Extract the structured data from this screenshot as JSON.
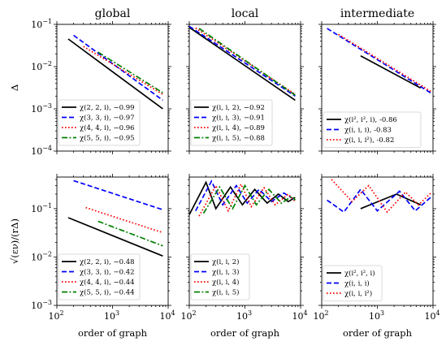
{
  "chart_data": [
    {
      "id": "global-delta",
      "title": "global",
      "xlabel": "",
      "ylabel": "Δ",
      "type": "line",
      "xscale": "log",
      "yscale": "log",
      "xlim": [
        100,
        10000
      ],
      "ylim": [
        0.0001,
        0.1
      ],
      "yticks": [
        "10^-4",
        "10^-3",
        "10^-2",
        "10^-1"
      ],
      "show_xticklabels": false,
      "legend_loc": "lower-left",
      "series": [
        {
          "name": "χ(2, 2, i), −0.99",
          "color": "#000000",
          "dash": "solid",
          "points": [
            [
              160,
              0.045
            ],
            [
              8000,
              0.001
            ]
          ]
        },
        {
          "name": "χ(3, 3, i), −0.97",
          "color": "#0000ff",
          "dash": "dashed",
          "points": [
            [
              200,
              0.055
            ],
            [
              8000,
              0.0016
            ]
          ]
        },
        {
          "name": "χ(4, 4, i), −0.96",
          "color": "#ff0000",
          "dash": "dotted",
          "points": [
            [
              300,
              0.03
            ],
            [
              8000,
              0.0022
            ]
          ]
        },
        {
          "name": "χ(5, 5, i), −0.95",
          "color": "#008000",
          "dash": "dashdot",
          "points": [
            [
              550,
              0.022
            ],
            [
              8000,
              0.0024
            ]
          ]
        }
      ]
    },
    {
      "id": "local-delta",
      "title": "local",
      "xlabel": "",
      "ylabel": "",
      "type": "line",
      "xscale": "log",
      "yscale": "log",
      "xlim": [
        100,
        10000
      ],
      "ylim": [
        0.0001,
        0.1
      ],
      "yticks": [],
      "show_xticklabels": false,
      "legend_loc": "lower-left",
      "series": [
        {
          "name": "χ(i, i, 2), −0.92",
          "color": "#000000",
          "dash": "solid",
          "points": [
            [
              100,
              0.085
            ],
            [
              8000,
              0.0016
            ]
          ]
        },
        {
          "name": "χ(i, i, 3), −0.91",
          "color": "#0000ff",
          "dash": "dashed",
          "points": [
            [
              100,
              0.09
            ],
            [
              8000,
              0.002
            ]
          ]
        },
        {
          "name": "χ(i, i, 4), −0.89",
          "color": "#ff0000",
          "dash": "dotted",
          "points": [
            [
              130,
              0.082
            ],
            [
              8000,
              0.0022
            ]
          ]
        },
        {
          "name": "χ(i, i, 5), −0.88",
          "color": "#008000",
          "dash": "dashdot",
          "points": [
            [
              150,
              0.08
            ],
            [
              8000,
              0.0021
            ]
          ]
        }
      ]
    },
    {
      "id": "intermediate-delta",
      "title": "intermediate",
      "xlabel": "",
      "ylabel": "",
      "type": "line",
      "xscale": "log",
      "yscale": "log",
      "xlim": [
        100,
        10000
      ],
      "ylim": [
        0.0001,
        0.1
      ],
      "yticks": [],
      "show_xticklabels": false,
      "legend_loc": "lower-left",
      "series": [
        {
          "name": "χ(i², i², i), -0.86",
          "color": "#000000",
          "dash": "solid",
          "points": [
            [
              500,
              0.018
            ],
            [
              6000,
              0.0031
            ]
          ]
        },
        {
          "name": "χ(i, i, i), -0.83",
          "color": "#0000ff",
          "dash": "dashed",
          "points": [
            [
              125,
              0.08
            ],
            [
              9500,
              0.0023
            ]
          ]
        },
        {
          "name": "χ(i, i, i²), -0.82",
          "color": "#ff0000",
          "dash": "dotted",
          "points": [
            [
              200,
              0.058
            ],
            [
              9500,
              0.0025
            ]
          ]
        }
      ]
    },
    {
      "id": "global-ratio",
      "title": "",
      "xlabel": "order of graph",
      "ylabel": "√(εν)/(rΔ)",
      "type": "line",
      "xscale": "log",
      "yscale": "log",
      "xlim": [
        100,
        10000
      ],
      "ylim": [
        0.001,
        0.45
      ],
      "yticks": [
        "10^-3",
        "10^-2",
        "10^-1"
      ],
      "xticks": [
        "10^2",
        "10^3",
        "10^4"
      ],
      "show_xticklabels": true,
      "legend_loc": "lower-left",
      "series": [
        {
          "name": "χ(2, 2, i), −0.48",
          "color": "#000000",
          "dash": "solid",
          "points": [
            [
              160,
              0.065
            ],
            [
              8000,
              0.0105
            ]
          ]
        },
        {
          "name": "χ(3, 3, i), −0.42",
          "color": "#0000ff",
          "dash": "dashed",
          "points": [
            [
              200,
              0.38
            ],
            [
              8000,
              0.095
            ]
          ]
        },
        {
          "name": "χ(4, 4, i), −0.44",
          "color": "#ff0000",
          "dash": "dotted",
          "points": [
            [
              330,
              0.105
            ],
            [
              8000,
              0.032
            ]
          ]
        },
        {
          "name": "χ(5, 5, i), −0.44",
          "color": "#008000",
          "dash": "dashdot",
          "points": [
            [
              550,
              0.055
            ],
            [
              8000,
              0.017
            ]
          ]
        }
      ]
    },
    {
      "id": "local-ratio",
      "title": "",
      "xlabel": "order of graph",
      "ylabel": "",
      "type": "line",
      "xscale": "log",
      "yscale": "log",
      "xlim": [
        100,
        10000
      ],
      "ylim": [
        0.001,
        0.45
      ],
      "yticks": [],
      "xticks": [
        "10^2",
        "10^3",
        "10^4"
      ],
      "show_xticklabels": true,
      "legend_loc": "lower-left",
      "series": [
        {
          "name": "χ(i, i, 2)",
          "color": "#000000",
          "dash": "solid",
          "points": [
            [
              100,
              0.075
            ],
            [
              200,
              0.35
            ],
            [
              300,
              0.1
            ],
            [
              550,
              0.28
            ],
            [
              900,
              0.12
            ],
            [
              1500,
              0.25
            ],
            [
              2500,
              0.13
            ],
            [
              4000,
              0.2
            ],
            [
              6000,
              0.14
            ],
            [
              8000,
              0.17
            ]
          ]
        },
        {
          "name": "χ(i, i, 3)",
          "color": "#0000ff",
          "dash": "dashed",
          "points": [
            [
              130,
              0.09
            ],
            [
              250,
              0.37
            ],
            [
              400,
              0.12
            ],
            [
              700,
              0.3
            ],
            [
              1100,
              0.13
            ],
            [
              1800,
              0.25
            ],
            [
              3000,
              0.14
            ],
            [
              5000,
              0.21
            ],
            [
              8000,
              0.15
            ]
          ]
        },
        {
          "name": "χ(i, i, 4)",
          "color": "#ff0000",
          "dash": "dotted",
          "points": [
            [
              150,
              0.07
            ],
            [
              300,
              0.3
            ],
            [
              500,
              0.09
            ],
            [
              850,
              0.32
            ],
            [
              1300,
              0.11
            ],
            [
              2200,
              0.27
            ],
            [
              3500,
              0.12
            ],
            [
              6000,
              0.2
            ],
            [
              8000,
              0.14
            ]
          ]
        },
        {
          "name": "χ(i, i, 5)",
          "color": "#008000",
          "dash": "dashdot",
          "points": [
            [
              180,
              0.08
            ],
            [
              350,
              0.28
            ],
            [
              600,
              0.1
            ],
            [
              1000,
              0.3
            ],
            [
              1600,
              0.12
            ],
            [
              2700,
              0.25
            ],
            [
              4500,
              0.13
            ],
            [
              7000,
              0.18
            ],
            [
              8000,
              0.15
            ]
          ]
        }
      ]
    },
    {
      "id": "intermediate-ratio",
      "title": "",
      "xlabel": "order of graph",
      "ylabel": "",
      "type": "line",
      "xscale": "log",
      "yscale": "log",
      "xlim": [
        100,
        10000
      ],
      "ylim": [
        0.001,
        0.45
      ],
      "yticks": [],
      "xticks": [
        "10^2",
        "10^3",
        "10^4"
      ],
      "show_xticklabels": true,
      "legend_loc": "lower-left",
      "series": [
        {
          "name": "χ(i², i², i)",
          "color": "#000000",
          "dash": "solid",
          "points": [
            [
              500,
              0.1
            ],
            [
              2200,
              0.2
            ],
            [
              6000,
              0.12
            ]
          ]
        },
        {
          "name": "χ(i, i, i)",
          "color": "#0000ff",
          "dash": "dashed",
          "points": [
            [
              125,
              0.15
            ],
            [
              250,
              0.085
            ],
            [
              500,
              0.25
            ],
            [
              1000,
              0.09
            ],
            [
              2500,
              0.23
            ],
            [
              4800,
              0.09
            ],
            [
              9500,
              0.18
            ]
          ]
        },
        {
          "name": "χ(i, i, i²)",
          "color": "#ff0000",
          "dash": "dotted",
          "points": [
            [
              150,
              0.4
            ],
            [
              350,
              0.14
            ],
            [
              700,
              0.3
            ],
            [
              1500,
              0.085
            ],
            [
              3200,
              0.22
            ],
            [
              5500,
              0.12
            ],
            [
              9500,
              0.22
            ]
          ]
        }
      ]
    }
  ]
}
